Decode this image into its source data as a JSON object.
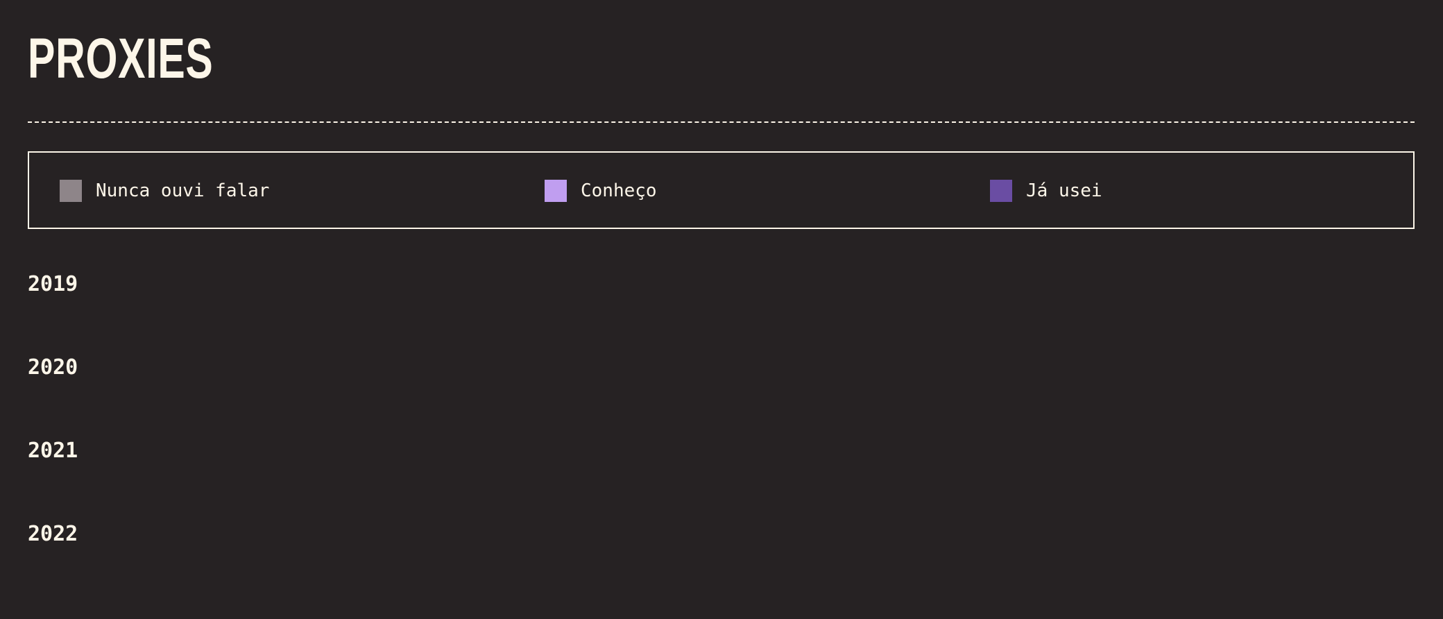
{
  "header": {
    "title": "PROXIES"
  },
  "legend": [
    {
      "label": "Nunca ouvi falar",
      "color": "#8e8589"
    },
    {
      "label": "Conheço",
      "color": "#c09ef0"
    },
    {
      "label": "Já usei",
      "color": "#6a4da3"
    }
  ],
  "years": [
    "2019",
    "2020",
    "2021",
    "2022"
  ]
}
